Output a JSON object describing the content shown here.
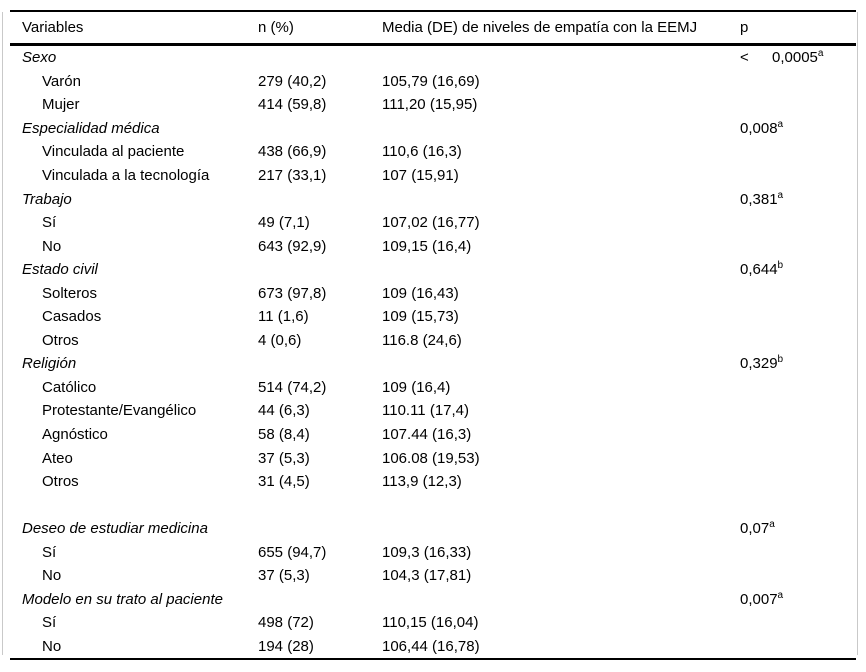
{
  "table": {
    "headers": {
      "variables": "Variables",
      "n": "n (%)",
      "media": "Media (DE) de niveles de empatía con la EEMJ",
      "p": "p"
    },
    "rows": [
      {
        "type": "category",
        "label": "Sexo",
        "p_prefix": "<",
        "p": "0,0005",
        "p_sup": "a"
      },
      {
        "type": "sub",
        "label": "Varón",
        "n": "279 (40,2)",
        "media": "105,79 (16,69)"
      },
      {
        "type": "sub",
        "label": "Mujer",
        "n": "414 (59,8)",
        "media": "111,20 (15,95)"
      },
      {
        "type": "category",
        "label": "Especialidad médica",
        "p": "0,008",
        "p_sup": "a"
      },
      {
        "type": "sub",
        "label": "Vinculada al paciente",
        "n": "438 (66,9)",
        "media": "110,6 (16,3)"
      },
      {
        "type": "sub",
        "label": "Vinculada a la tecnología",
        "n": "217 (33,1)",
        "media": "107 (15,91)"
      },
      {
        "type": "category",
        "label": "Trabajo",
        "p": "0,381",
        "p_sup": "a"
      },
      {
        "type": "sub",
        "label": "Sí",
        "n": "49 (7,1)",
        "media": "107,02 (16,77)"
      },
      {
        "type": "sub",
        "label": "No",
        "n": "643 (92,9)",
        "media": "109,15 (16,4)"
      },
      {
        "type": "category",
        "label": "Estado civil",
        "p": "0,644",
        "p_sup": "b"
      },
      {
        "type": "sub",
        "label": "Solteros",
        "n": "673 (97,8)",
        "media": "109 (16,43)"
      },
      {
        "type": "sub",
        "label": "Casados",
        "n": "11 (1,6)",
        "media": "109 (15,73)"
      },
      {
        "type": "sub",
        "label": "Otros",
        "n": "4 (0,6)",
        "media": "116.8 (24,6)"
      },
      {
        "type": "category",
        "label": "Religión",
        "p": "0,329",
        "p_sup": "b"
      },
      {
        "type": "sub",
        "label": "Católico",
        "n": "514 (74,2)",
        "media": "109 (16,4)"
      },
      {
        "type": "sub",
        "label": "Protestante/Evangélico",
        "n": "44 (6,3)",
        "media": "110.11 (17,4)"
      },
      {
        "type": "sub",
        "label": "Agnóstico",
        "n": "58 (8,4)",
        "media": "107.44 (16,3)"
      },
      {
        "type": "sub",
        "label": "Ateo",
        "n": "37 (5,3)",
        "media": "106.08 (19,53)"
      },
      {
        "type": "sub",
        "label": "Otros",
        "n": "31 (4,5)",
        "media": "113,9 (12,3)"
      },
      {
        "type": "spacer"
      },
      {
        "type": "category",
        "label": "Deseo de estudiar medicina",
        "p": "0,07",
        "p_sup": "a"
      },
      {
        "type": "sub",
        "label": "Sí",
        "n": "655 (94,7)",
        "media": "109,3 (16,33)"
      },
      {
        "type": "sub",
        "label": "No",
        "n": "37 (5,3)",
        "media": "104,3 (17,81)"
      },
      {
        "type": "category",
        "label": "Modelo en su trato al paciente",
        "p": "0,007",
        "p_sup": "a"
      },
      {
        "type": "sub",
        "label": "Sí",
        "n": "498 (72)",
        "media": "110,15 (16,04)"
      },
      {
        "type": "sub",
        "label": "No",
        "n": "194 (28)",
        "media": "106,44 (16,78)"
      }
    ]
  }
}
